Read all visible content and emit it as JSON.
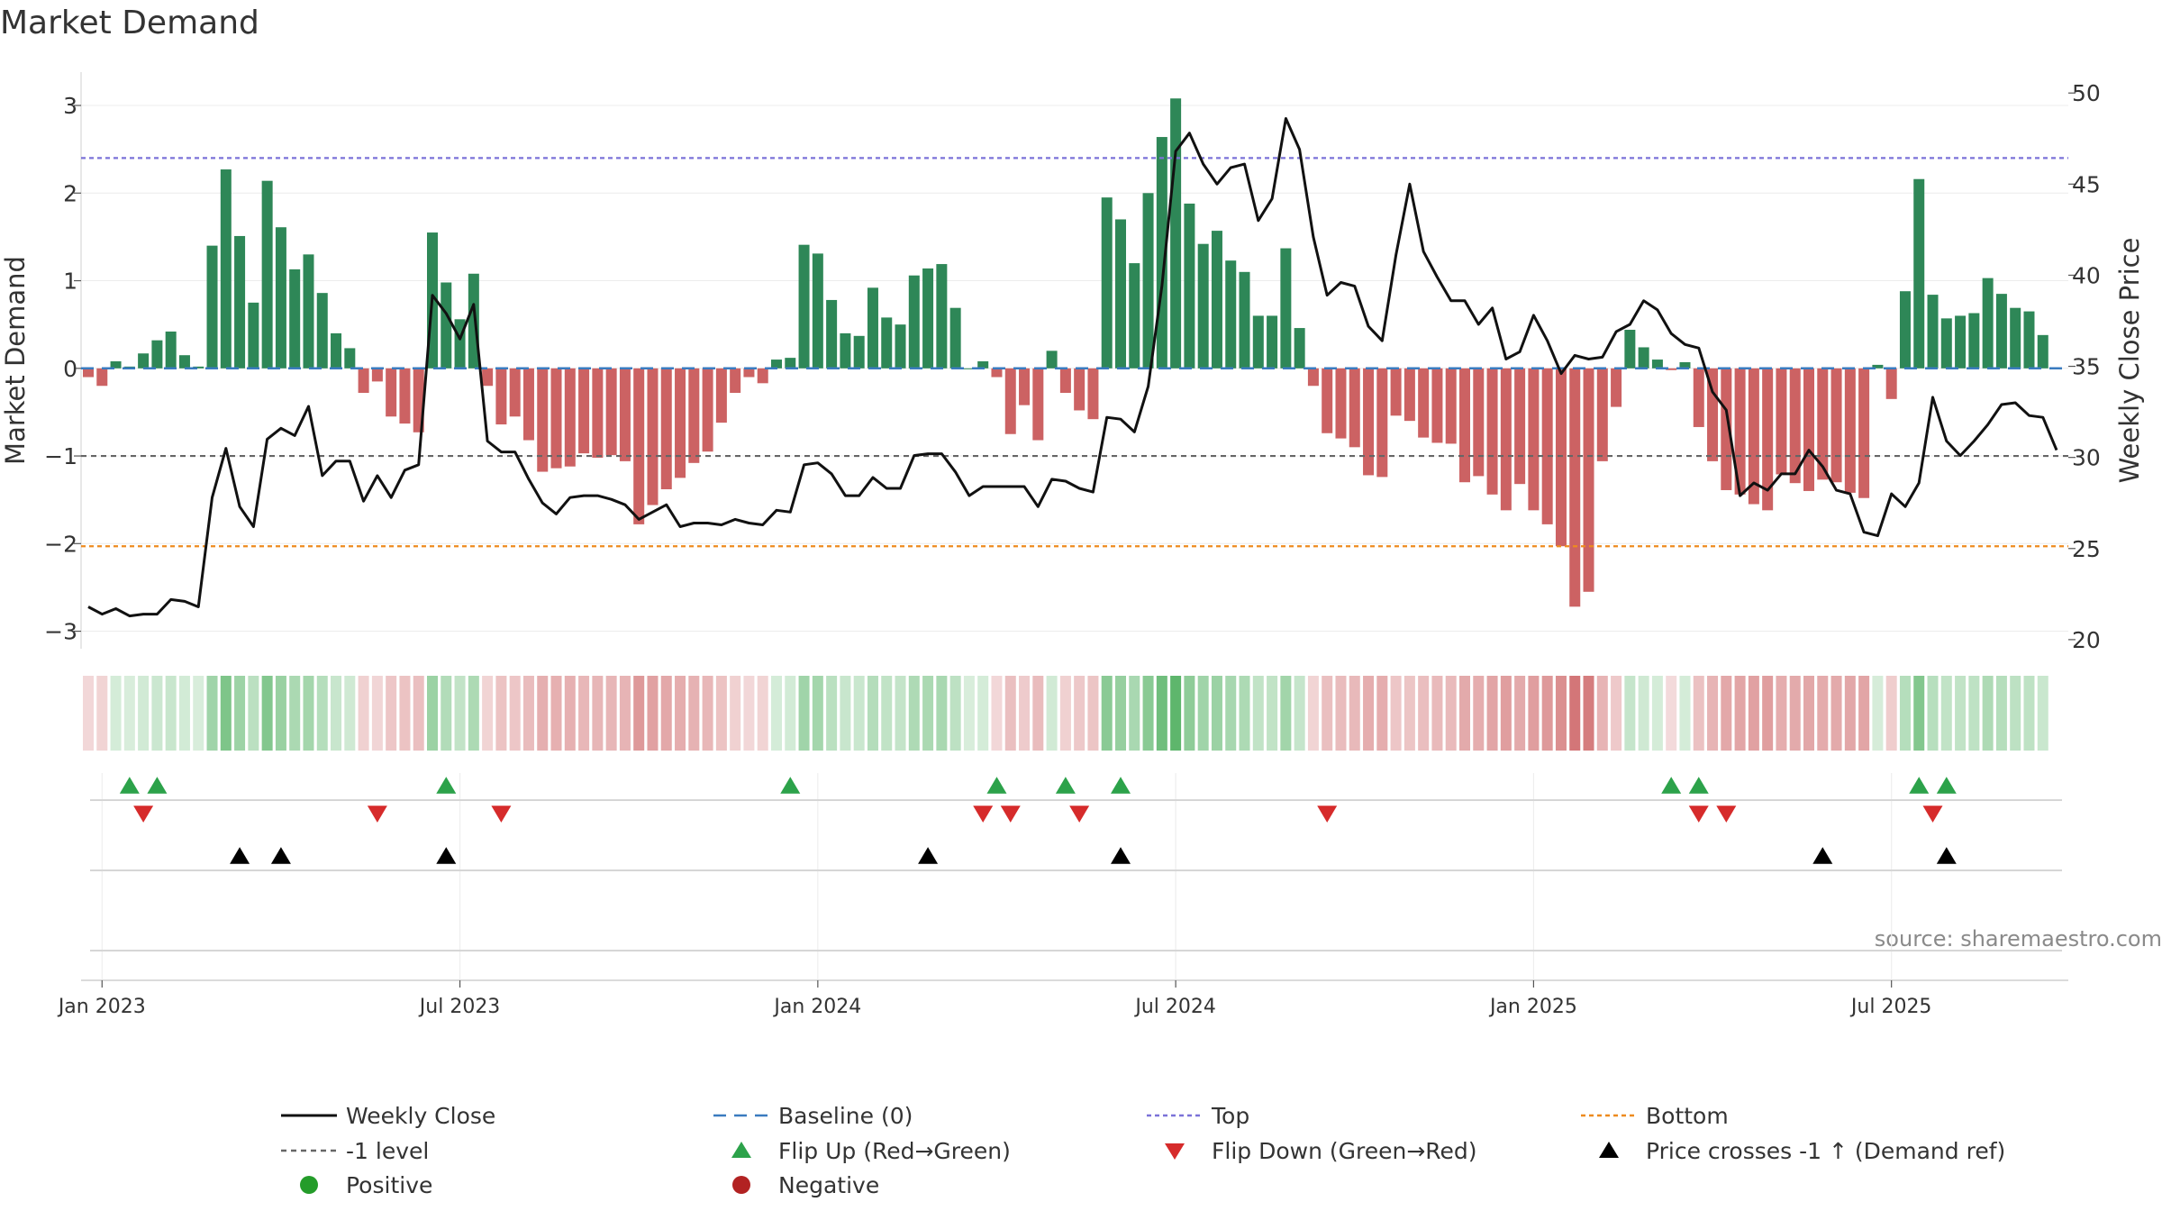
{
  "chart_data": {
    "type": "bar+line",
    "title": "Market Demand",
    "ylabel": "Market Demand",
    "y2label": "Weekly Close Price",
    "ylim": [
      -3.2,
      3.35
    ],
    "y2lim": [
      19.5,
      51
    ],
    "yticks": [
      {
        "v": 3,
        "label": "3"
      },
      {
        "v": 2,
        "label": "2"
      },
      {
        "v": 1,
        "label": "1"
      },
      {
        "v": 0,
        "label": "0"
      },
      {
        "v": -1,
        "label": "−1"
      },
      {
        "v": -2,
        "label": "−2"
      },
      {
        "v": -3,
        "label": "−3"
      }
    ],
    "y2ticks": [
      {
        "v": 50,
        "label": "50"
      },
      {
        "v": 45,
        "label": "45"
      },
      {
        "v": 40,
        "label": "40"
      },
      {
        "v": 35,
        "label": "35"
      },
      {
        "v": 30,
        "label": "30"
      },
      {
        "v": 25,
        "label": "25"
      },
      {
        "v": 20,
        "label": "20"
      }
    ],
    "xticks": [
      {
        "week": 1,
        "label": "Jan 2023"
      },
      {
        "week": 27,
        "label": "Jul 2023"
      },
      {
        "week": 53,
        "label": "Jan 2024"
      },
      {
        "week": 79,
        "label": "Jul 2024"
      },
      {
        "week": 105,
        "label": "Jan 2025"
      },
      {
        "week": 131,
        "label": "Jul 2025"
      }
    ],
    "weeks_total": 144,
    "demand": [
      -0.1,
      -0.2,
      0.08,
      0.02,
      0.17,
      0.32,
      0.42,
      0.15,
      0.02,
      1.4,
      2.27,
      1.51,
      0.75,
      2.14,
      1.61,
      1.13,
      1.3,
      0.86,
      0.4,
      0.23,
      -0.28,
      -0.15,
      -0.55,
      -0.63,
      -0.73,
      1.55,
      0.98,
      0.56,
      1.08,
      -0.2,
      -0.64,
      -0.55,
      -0.82,
      -1.18,
      -1.14,
      -1.12,
      -0.97,
      -1.02,
      -0.99,
      -1.06,
      -1.78,
      -1.56,
      -1.38,
      -1.25,
      -1.08,
      -0.95,
      -0.62,
      -0.28,
      -0.1,
      -0.17,
      0.1,
      0.12,
      1.41,
      1.31,
      0.78,
      0.4,
      0.37,
      0.92,
      0.58,
      0.5,
      1.06,
      1.14,
      1.19,
      0.69,
      0.0,
      0.08,
      -0.1,
      -0.75,
      -0.42,
      -0.82,
      0.2,
      -0.28,
      -0.48,
      -0.58,
      1.95,
      1.7,
      1.2,
      2.0,
      2.64,
      3.08,
      1.88,
      1.42,
      1.57,
      1.23,
      1.1,
      0.6,
      0.6,
      1.37,
      0.46,
      -0.2,
      -0.74,
      -0.8,
      -0.9,
      -1.22,
      -1.24,
      -0.54,
      -0.6,
      -0.79,
      -0.85,
      -0.86,
      -1.3,
      -1.23,
      -1.44,
      -1.62,
      -1.32,
      -1.62,
      -1.78,
      -2.03,
      -2.72,
      -2.55,
      -1.06,
      -0.44,
      0.44,
      0.24,
      0.1,
      -0.02,
      0.07,
      -0.67,
      -1.06,
      -1.39,
      -1.44,
      -1.55,
      -1.62,
      -1.21,
      -1.31,
      -1.4,
      -1.27,
      -1.3,
      -1.42,
      -1.48,
      0.04,
      -0.35,
      0.88,
      2.16,
      0.84,
      0.57,
      0.6,
      0.63,
      1.03,
      0.85,
      0.69,
      0.65,
      0.38
    ],
    "close": [
      21.8,
      21.4,
      21.7,
      21.3,
      21.4,
      21.4,
      22.2,
      22.1,
      21.8,
      27.8,
      30.5,
      27.3,
      26.2,
      31.0,
      31.6,
      31.2,
      32.8,
      29.0,
      29.8,
      29.8,
      27.6,
      29.0,
      27.8,
      29.3,
      29.6,
      38.9,
      37.9,
      36.5,
      38.4,
      30.9,
      30.3,
      30.3,
      28.8,
      27.5,
      26.9,
      27.8,
      27.9,
      27.9,
      27.7,
      27.4,
      26.6,
      27.0,
      27.4,
      26.2,
      26.4,
      26.4,
      26.3,
      26.6,
      26.4,
      26.3,
      27.1,
      27.0,
      29.6,
      29.7,
      29.1,
      27.9,
      27.9,
      28.9,
      28.3,
      28.3,
      30.1,
      30.2,
      30.2,
      29.2,
      27.9,
      28.4,
      28.4,
      28.4,
      28.4,
      27.3,
      28.8,
      28.7,
      28.3,
      28.1,
      32.2,
      32.1,
      31.4,
      33.9,
      39.4,
      46.8,
      47.8,
      46.1,
      45.0,
      45.9,
      46.1,
      43.0,
      44.2,
      48.6,
      46.9,
      42.1,
      38.9,
      39.6,
      39.4,
      37.2,
      36.4,
      41.1,
      45.0,
      41.3,
      39.9,
      38.6,
      38.6,
      37.3,
      38.2,
      35.4,
      35.8,
      37.8,
      36.4,
      34.6,
      35.6,
      35.4,
      35.5,
      36.9,
      37.3,
      38.6,
      38.1,
      36.8,
      36.2,
      36.0,
      33.6,
      32.6,
      27.9,
      28.6,
      28.2,
      29.1,
      29.1,
      30.4,
      29.5,
      28.2,
      28.0,
      25.9,
      25.7,
      28.0,
      27.3,
      28.6,
      33.3,
      30.9,
      30.1,
      30.9,
      31.8,
      32.9,
      33.0,
      32.3,
      32.2,
      30.4
    ],
    "reference_lines": [
      {
        "name": "Top",
        "value": 2.4,
        "color": "#7b72d8"
      },
      {
        "name": "Bottom",
        "value": -2.03,
        "color": "#ee8b1e"
      },
      {
        "name": "-1 level",
        "value": -1,
        "color": "#666666"
      },
      {
        "name": "Baseline (0)",
        "value": 0,
        "color": "#3a7bbf"
      }
    ],
    "flip_up_weeks": [
      3,
      5,
      26,
      51,
      66,
      71,
      75,
      115,
      117,
      133,
      135
    ],
    "flip_down_weeks": [
      4,
      21,
      30,
      65,
      67,
      72,
      90,
      117,
      119,
      134
    ],
    "price_cross_weeks": [
      11,
      14,
      26,
      61,
      75,
      126,
      135
    ],
    "colors": {
      "positive": "#2e8757",
      "negative": "#cc6263",
      "close": "#111111",
      "green_strip": "#4cae5c",
      "red_strip": "#c9585a",
      "flip_up": "#2ca24a",
      "flip_down": "#d62b2b",
      "cross": "#000000",
      "positive_dot": "#249c2a",
      "negative_dot": "#b22222"
    },
    "source": "source: sharemaestro.com",
    "legend": [
      {
        "key": "close",
        "label": "Weekly Close"
      },
      {
        "key": "baseline",
        "label": "Baseline (0)"
      },
      {
        "key": "top",
        "label": "Top"
      },
      {
        "key": "bottom",
        "label": "Bottom"
      },
      {
        "key": "minus1",
        "label": "-1 level"
      },
      {
        "key": "flipup",
        "label": "Flip Up (Red→Green)"
      },
      {
        "key": "flipdown",
        "label": "Flip Down (Green→Red)"
      },
      {
        "key": "cross",
        "label": "Price crosses -1 ↑ (Demand ref)"
      },
      {
        "key": "positive",
        "label": "Positive"
      },
      {
        "key": "negative",
        "label": "Negative"
      }
    ]
  }
}
